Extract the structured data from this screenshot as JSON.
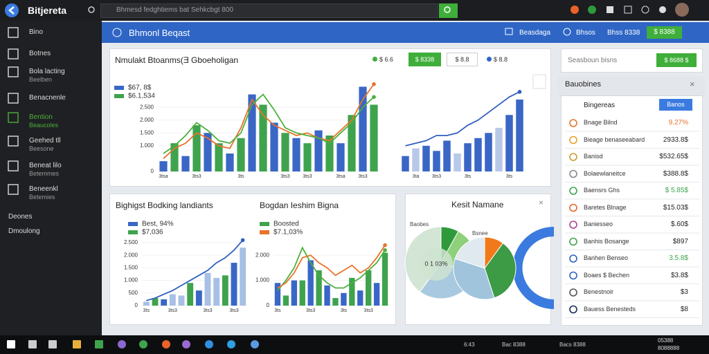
{
  "topbar": {
    "app": "Bitjereta",
    "search": "Bhmesd fedghtiems bat Sehkcbgt 800"
  },
  "sidebar": [
    {
      "label": "Bino"
    },
    {
      "label": "Botnes"
    },
    {
      "label": "Bola lacting",
      "sub": "Beelben"
    },
    {
      "label": "Benacnenle"
    },
    {
      "label": "Bention",
      "sub": "Beaucoles"
    },
    {
      "label": "Geehed tll",
      "sub": "Beesone"
    },
    {
      "label": "Beneat lilo",
      "sub": "Betemmes"
    },
    {
      "label": "Beneenkl",
      "sub": "Betemies"
    },
    {
      "label": "Deones"
    },
    {
      "label": "Dmoulong"
    }
  ],
  "header": {
    "title": "Bhmonl Beqast",
    "links": [
      "Beasdaga",
      "Bhsos"
    ],
    "amount": "Bhss 8338",
    "button": "$ 8388"
  },
  "main_panel": {
    "title": "Nmulakt Btoanms(Ǝ Gboeholigan",
    "buttons": [
      "$ 6.6",
      "$ 8338",
      "$ 8.8",
      "$ 8.8"
    ]
  },
  "bottom_panel": {
    "titles": [
      "Bighigst Bodking landiants",
      "Bogdan Ieshim Bigna"
    ]
  },
  "pie_panel": {
    "title": "Kesit Namane",
    "labels": [
      "Baobes",
      "Bsnee"
    ],
    "center": "0 1 03%",
    "pies": [
      {
        "values": [
          8,
          22,
          30,
          40
        ],
        "colors": [
          "#2e9a3c",
          "#8fd07a",
          "#a9c9e0",
          "#d3e6d5"
        ]
      },
      {
        "values": [
          10,
          35,
          35,
          20
        ],
        "colors": [
          "#f07a1a",
          "#3d9a45",
          "#9fc4dc",
          "#dfe9ef"
        ]
      }
    ]
  },
  "charts": [
    {
      "ylim": [
        0,
        3500
      ],
      "yticks": [
        0,
        {
          "value": 1000,
          "label": "1.000"
        },
        {
          "value": 1500,
          "label": "1.500"
        },
        {
          "value": 2000,
          "label": "2.000"
        },
        {
          "value": 2500,
          "label": "2.500"
        }
      ],
      "categories": [
        "3tsa",
        null,
        null,
        "3ts3",
        null,
        null,
        null,
        "3ts",
        null,
        null,
        null,
        "3ts3",
        null,
        "3ts3",
        null,
        null,
        "3tsa",
        null,
        "3ts3",
        null
      ],
      "legend": [
        {
          "name": "$67, 8$",
          "color": "#3a66c6"
        },
        {
          "name": "$6.1,534",
          "color": "#3fa34d"
        }
      ],
      "bars": {
        "values": [
          400,
          1100,
          600,
          1800,
          1500,
          1100,
          700,
          1300,
          3000,
          2600,
          1900,
          1500,
          1300,
          1100,
          1600,
          1400,
          1100,
          2200,
          3300,
          2600
        ],
        "colors": [
          "#3a66c6",
          "#3fa34d"
        ]
      },
      "lines": [
        {
          "color": "#e8732a",
          "values": [
            500,
            900,
            1100,
            1500,
            1300,
            1000,
            900,
            1700,
            2800,
            2200,
            1800,
            1600,
            1400,
            1500,
            1300,
            1200,
            1600,
            2000,
            2800,
            3400
          ]
        },
        {
          "color": "#4caf3c",
          "values": [
            700,
            1000,
            1400,
            1900,
            1600,
            1200,
            1100,
            1500,
            2600,
            3000,
            2400,
            1700,
            1500,
            1400,
            1300,
            1100,
            1500,
            1900,
            2500,
            2900
          ]
        }
      ]
    },
    {
      "ylim": [
        0,
        3500
      ],
      "yticks": [],
      "categories": [
        null,
        "3ta",
        null,
        "3ts3",
        null,
        null,
        "3ts",
        null,
        null,
        null,
        "3ts",
        null
      ],
      "legend": [],
      "bars": {
        "values": [
          600,
          900,
          1000,
          800,
          1200,
          700,
          1100,
          1300,
          1500,
          1700,
          2200,
          2800
        ],
        "colors": [
          "#3a66c6",
          "#b8c9e8",
          "#3a66c6",
          "#3a66c6"
        ]
      },
      "lines": [
        {
          "color": "#2f5fc0",
          "values": [
            1000,
            1100,
            1200,
            1400,
            1400,
            1500,
            1800,
            2000,
            2300,
            2600,
            2900,
            3100
          ]
        }
      ]
    },
    {
      "ylim": [
        0,
        2800
      ],
      "yticks": [
        0,
        500,
        {
          "value": 1000,
          "label": "1.000"
        },
        {
          "value": 1500,
          "label": "1.500"
        },
        {
          "value": 2000,
          "label": "2.000"
        },
        {
          "value": 2500,
          "label": "2.500"
        }
      ],
      "categories": [
        "3ts",
        null,
        null,
        "3ts3",
        null,
        null,
        null,
        "3ts3",
        null,
        null,
        "3ts3",
        null
      ],
      "legend": [
        {
          "name": "Best, 94%",
          "color": "#3a66c6"
        },
        {
          "name": "$7,036",
          "color": "#3fa34d"
        }
      ],
      "bars": {
        "values": [
          150,
          300,
          250,
          450,
          400,
          900,
          600,
          1300,
          1100,
          1200,
          1700,
          2300
        ],
        "colors": [
          "#a8bfe6",
          "#3fa34d",
          "#3a66c6",
          "#a8bfe6"
        ]
      },
      "lines": [
        {
          "color": "#2f5fc0",
          "values": [
            200,
            300,
            450,
            600,
            800,
            1000,
            1200,
            1400,
            1700,
            1900,
            2200,
            2600
          ]
        }
      ]
    },
    {
      "ylim": [
        0,
        2800
      ],
      "yticks": [
        0,
        {
          "value": 1000,
          "label": "1.000"
        },
        {
          "value": 2000,
          "label": "2.000"
        }
      ],
      "categories": [
        "3ts",
        null,
        null,
        null,
        "3ts3",
        null,
        null,
        null,
        "3ts",
        null,
        null,
        "3ts3",
        null,
        null
      ],
      "legend": [
        {
          "name": "Boosted",
          "color": "#3fa34d"
        },
        {
          "name": "$7.1,03%",
          "color": "#e8732a"
        }
      ],
      "bars": {
        "values": [
          900,
          400,
          1000,
          1000,
          1800,
          1400,
          800,
          300,
          500,
          1100,
          600,
          1400,
          900,
          2100
        ],
        "colors": [
          "#3a66c6",
          "#3fa34d"
        ]
      },
      "lines": [
        {
          "color": "#4caf3c",
          "values": [
            600,
            1000,
            1500,
            2300,
            1700,
            1200,
            900,
            700,
            700,
            900,
            1100,
            1400,
            1700,
            2200
          ]
        },
        {
          "color": "#e8732a",
          "values": [
            700,
            900,
            1300,
            1900,
            2000,
            1700,
            1500,
            1200,
            1400,
            1600,
            1300,
            1500,
            1900,
            2400
          ]
        }
      ]
    }
  ],
  "right_panel": {
    "search": "Seasboun bisns",
    "button": "$ 8688 $",
    "title": "Bauobines",
    "first": "Bingereas",
    "first_button": "Banos",
    "rows": [
      {
        "label": "Bnage Bilnd",
        "value": "9.27%",
        "color": "#e8732a"
      },
      {
        "label": "Bieage benaseeabard",
        "value": "2933.8$"
      },
      {
        "label": "Banisd",
        "value": "$532.65$"
      },
      {
        "label": "Bolaewlaneitce",
        "value": "$388.8$"
      },
      {
        "label": "Baensrs Ghs",
        "value": "$ 5.85$",
        "color": "#3fa34d"
      },
      {
        "label": "Baretes Blnage",
        "value": "$15.03$"
      },
      {
        "label": "Baniesseo",
        "value": "$.60$"
      },
      {
        "label": "Banhis Bosange",
        "value": "$897"
      },
      {
        "label": "Banhen Benseo",
        "value": "3.5.8$",
        "color": "#3fa34d"
      },
      {
        "label": "Boaes $ Bechen",
        "value": "$3.8$"
      },
      {
        "label": "Benestnoir",
        "value": "$3"
      },
      {
        "label": "Bauess Benesteds",
        "value": "$8"
      }
    ]
  },
  "taskbar": {
    "tray": [
      "6:43",
      "Bac 8388",
      "Bacs 8388"
    ],
    "time": "05388",
    "date": "8088888"
  }
}
